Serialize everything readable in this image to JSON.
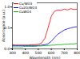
{
  "chart_data": {
    "type": "line",
    "x_label": "Wavelength (nm)",
    "y_label": "Absorbance (a.u.)",
    "x": [
      300,
      325,
      350,
      375,
      400,
      425,
      450,
      475,
      500,
      525,
      550,
      575,
      600,
      625,
      650,
      675,
      700,
      725,
      750,
      775,
      800
    ],
    "series": [
      {
        "name": "Cu/WO3",
        "color": "#ff0000",
        "values": [
          0.1,
          0.09,
          0.09,
          0.09,
          0.09,
          0.09,
          0.1,
          0.1,
          0.11,
          0.14,
          0.25,
          0.5,
          0.78,
          0.9,
          0.93,
          0.92,
          0.95,
          0.93,
          0.96,
          0.94,
          0.95
        ]
      },
      {
        "name": "Cu2O/WO3",
        "color": "#0000ff",
        "values": [
          0.08,
          0.08,
          0.08,
          0.08,
          0.08,
          0.08,
          0.08,
          0.08,
          0.08,
          0.09,
          0.1,
          0.12,
          0.18,
          0.27,
          0.35,
          0.4,
          0.45,
          0.48,
          0.5,
          0.52,
          0.53
        ]
      },
      {
        "name": "CuWO4",
        "color": "#00aa00",
        "values": [
          0.05,
          0.05,
          0.05,
          0.05,
          0.06,
          0.06,
          0.06,
          0.06,
          0.07,
          0.07,
          0.08,
          0.08,
          0.09,
          0.09,
          0.1,
          0.1,
          0.11,
          0.11,
          0.12,
          0.12,
          0.13
        ]
      }
    ],
    "xlim": [
      300,
      800
    ],
    "xticks": [
      300,
      400,
      500,
      600,
      700,
      800
    ],
    "ylim": [
      0,
      1.1
    ],
    "yticks": [
      0,
      0.5,
      1
    ],
    "legend": "upper left",
    "grid": false
  }
}
